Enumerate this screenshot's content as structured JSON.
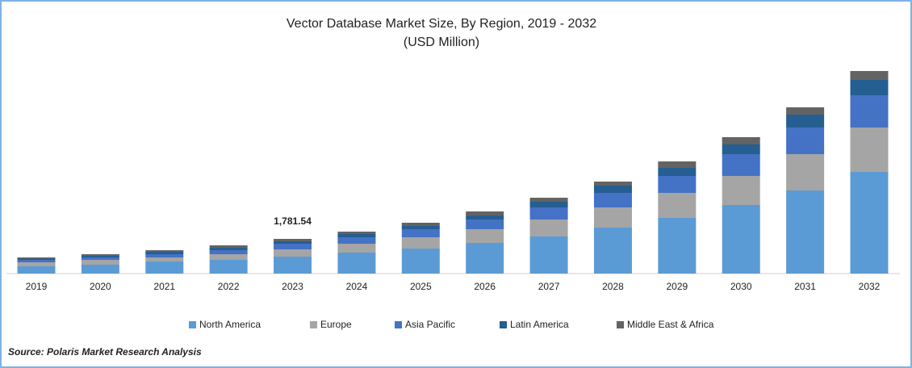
{
  "chart_data": {
    "type": "stacked_bar",
    "title": "Vector Database Market Size, By Region, 2019 - 2032",
    "subtitle": "(USD Million)",
    "categories": [
      "2019",
      "2020",
      "2021",
      "2022",
      "2023",
      "2024",
      "2025",
      "2026",
      "2027",
      "2028",
      "2029",
      "2030",
      "2031",
      "2032"
    ],
    "series": [
      {
        "name": "North America",
        "color": "#5b9bd5",
        "values": [
          373,
          456,
          621,
          704,
          870,
          1077,
          1284,
          1574,
          1906,
          2361,
          2859,
          3522,
          4267,
          5220
        ]
      },
      {
        "name": "Europe",
        "color": "#a5a5a5",
        "values": [
          207,
          249,
          207,
          290,
          373,
          456,
          580,
          704,
          870,
          1036,
          1284,
          1491,
          1864,
          2279
        ]
      },
      {
        "name": "Asia Pacific",
        "color": "#4472c4",
        "values": [
          124,
          124,
          166,
          207,
          290,
          331,
          414,
          497,
          621,
          746,
          870,
          1119,
          1367,
          1657
        ]
      },
      {
        "name": "Latin America",
        "color": "#255e91",
        "values": [
          62,
          83,
          124,
          124,
          125,
          166,
          166,
          207,
          290,
          373,
          414,
          497,
          663,
          787
        ]
      },
      {
        "name": "Middle East & Africa",
        "color": "#636363",
        "values": [
          62,
          83,
          83,
          124,
          123.54,
          124,
          166,
          207,
          207,
          207,
          331,
          373,
          373,
          456
        ]
      }
    ],
    "annotations": [
      {
        "x": "2023",
        "value": 1781.54,
        "label": "1,781.54"
      }
    ],
    "legend": "bottom",
    "source": "Source: Polaris Market Research Analysis"
  }
}
